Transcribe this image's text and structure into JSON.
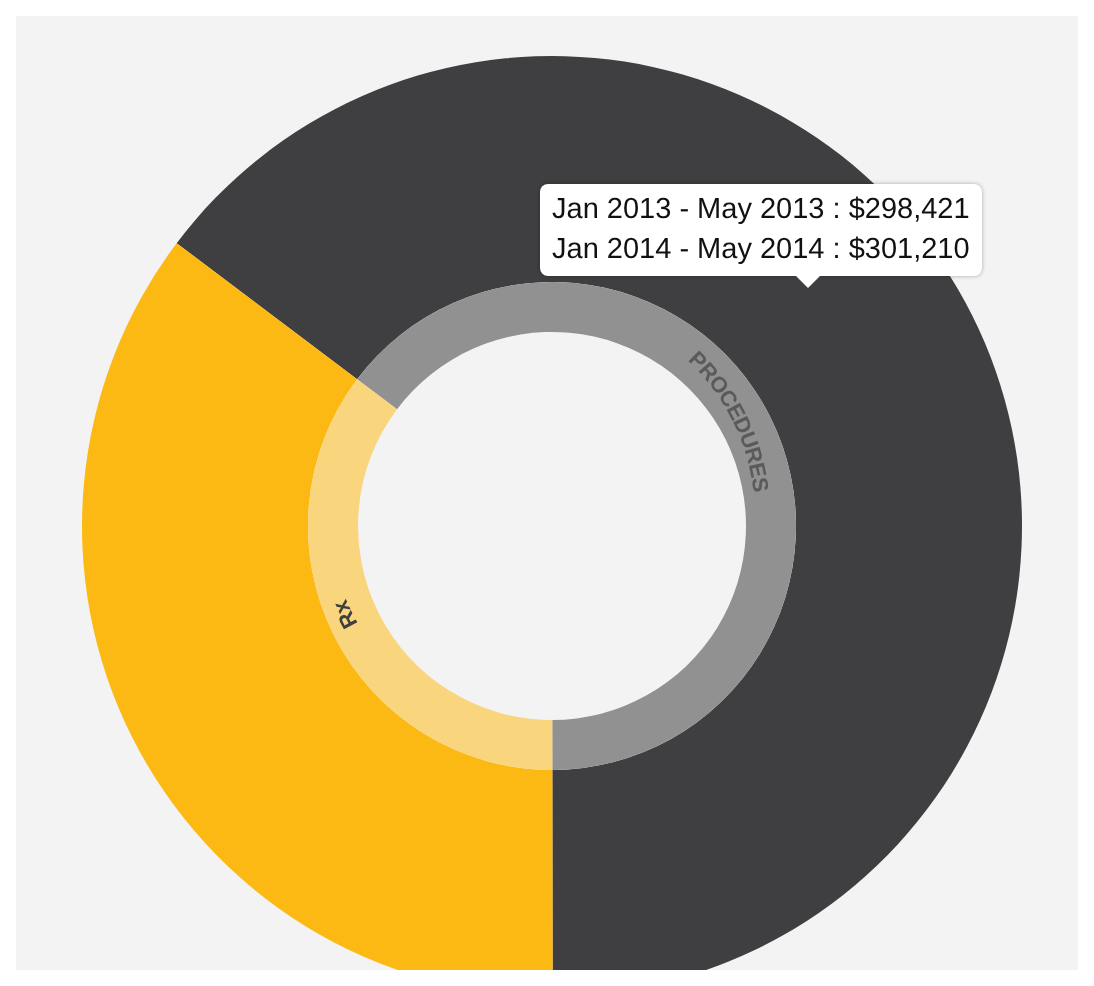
{
  "chart_data": {
    "type": "donut",
    "categories": [
      "PROCEDURES",
      "Rx"
    ],
    "series": [
      {
        "values": [
          64.7,
          35.3
        ],
        "colors": [
          "#3f3f41",
          "#fdb913"
        ]
      },
      {
        "values": [
          64.7,
          35.3
        ],
        "colors": [
          "#919191",
          "#f9d57d"
        ]
      }
    ],
    "annotations": [
      "Jan 2013 - May 2013 : $298,421",
      "Jan 2014 - May 2014 : $301,210"
    ],
    "legend": false
  }
}
